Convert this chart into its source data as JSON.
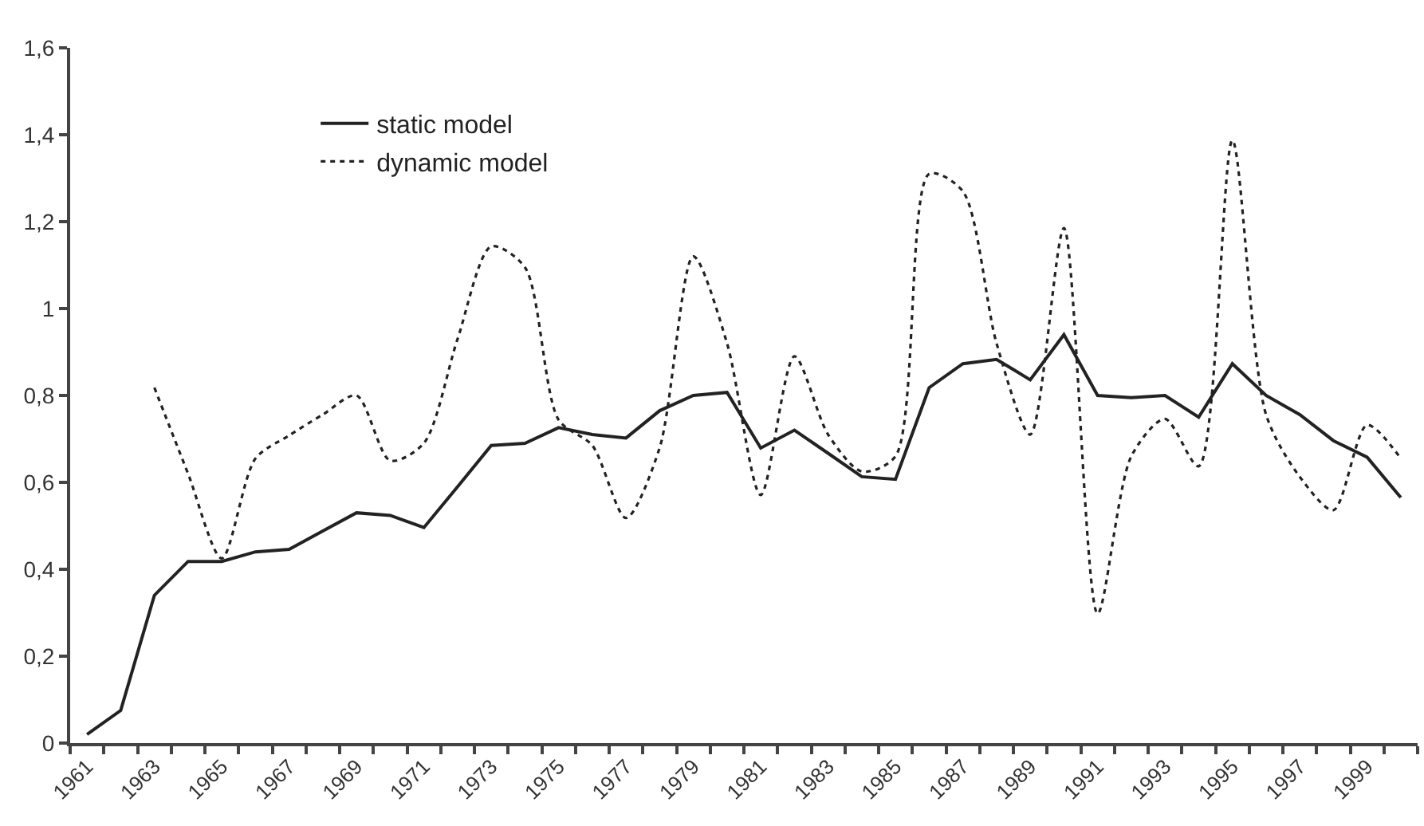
{
  "chart_data": {
    "type": "line",
    "categories": [
      "1961",
      null,
      "1963",
      null,
      "1965",
      null,
      "1967",
      null,
      "1969",
      null,
      "1971",
      null,
      "1973",
      null,
      "1975",
      null,
      "1977",
      null,
      "1979",
      null,
      "1981",
      null,
      "1983",
      null,
      "1985",
      null,
      "1987",
      null,
      "1989",
      null,
      "1991",
      null,
      "1993",
      null,
      "1995",
      null,
      "1997",
      null,
      "1999",
      null
    ],
    "series": [
      {
        "name": "static model",
        "color": "#222222",
        "line_style": "solid",
        "values": [
          0.02,
          0.075,
          0.34,
          0.418,
          0.418,
          0.44,
          0.446,
          0.488,
          0.53,
          0.524,
          0.496,
          0.59,
          0.685,
          0.69,
          0.726,
          0.71,
          0.702,
          0.765,
          0.8,
          0.807,
          0.679,
          0.72,
          0.667,
          0.613,
          0.607,
          0.818,
          0.873,
          0.883,
          0.836,
          0.94,
          0.8,
          0.795,
          0.8,
          0.75,
          0.873,
          0.8,
          0.756,
          0.696,
          0.658,
          0.565
        ]
      },
      {
        "name": "dynamic model",
        "color": "#222222",
        "line_style": "dotted",
        "values": [
          null,
          null,
          0.818,
          0.62,
          0.425,
          0.655,
          0.708,
          0.756,
          0.8,
          0.65,
          0.69,
          0.93,
          1.143,
          1.095,
          0.744,
          0.685,
          0.518,
          0.68,
          1.12,
          0.92,
          0.571,
          0.89,
          0.71,
          0.625,
          0.66,
          1.31,
          1.27,
          0.92,
          0.71,
          1.185,
          0.298,
          0.66,
          0.746,
          0.637,
          1.387,
          0.756,
          0.613,
          0.536,
          0.732,
          0.655
        ]
      }
    ],
    "ylim": [
      0,
      1.6
    ],
    "yticks": [
      0,
      {
        "value": 0.2,
        "label": "0,2"
      },
      {
        "value": 0.4,
        "label": "0,4"
      },
      {
        "value": 0.6,
        "label": "0,6"
      },
      {
        "value": 0.8,
        "label": "0,8"
      },
      1,
      {
        "value": 1.2,
        "label": "1,2"
      },
      {
        "value": 1.4,
        "label": "1,4"
      },
      {
        "value": 1.6,
        "label": "1,6"
      }
    ],
    "grid": false,
    "legend": "top left",
    "marker": "none"
  }
}
